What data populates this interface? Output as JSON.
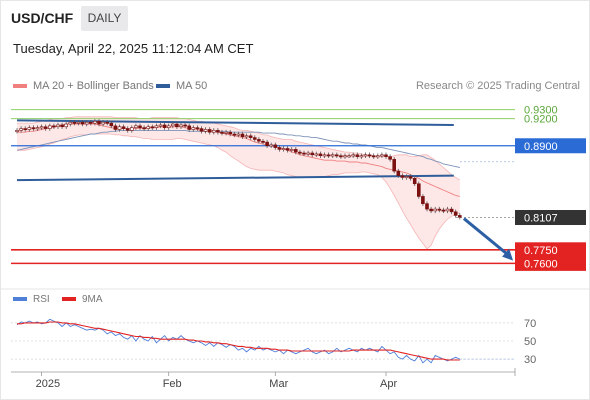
{
  "header": {
    "symbol": "USD/CHF",
    "timeframe": "DAILY"
  },
  "timestamp": "Tuesday, April 22, 2025 11:12:04 AM CET",
  "legend": {
    "ma20": "MA 20 + Bollinger Bands",
    "ma50": "MA 50",
    "copyright": "Research © 2025 Trading Central"
  },
  "colors": {
    "ma20": "#f08080",
    "band_fill": "#fde3e3",
    "ma50": "#2f5d9a",
    "candle": "#7a1010",
    "support": "#e32222",
    "resistance": "#8fcf6a",
    "pivot": "#2a6bd6",
    "current": "#333333",
    "arrow": "#2d5fa5",
    "rsi": "#4f80d8",
    "rsi_ma": "#e32222"
  },
  "chart_data": [
    {
      "type": "candlestick",
      "title": "USD/CHF",
      "timeframe": "DAILY",
      "x_ticks": [
        "2025",
        "Feb",
        "Mar",
        "Apr"
      ],
      "ylim": [
        0.735,
        0.945
      ],
      "levels": [
        {
          "label": "0.9300",
          "value": 0.93,
          "kind": "resistance"
        },
        {
          "label": "0.9200",
          "value": 0.92,
          "kind": "resistance"
        },
        {
          "label": "0.8900",
          "value": 0.89,
          "kind": "pivot"
        },
        {
          "label": "0.8107",
          "value": 0.8107,
          "kind": "current"
        },
        {
          "label": "0.7750",
          "value": 0.775,
          "kind": "support"
        },
        {
          "label": "0.7600",
          "value": 0.76,
          "kind": "support"
        }
      ],
      "trendlines": [
        {
          "from": [
            0,
            0.918
          ],
          "to": [
            108,
            0.913
          ]
        },
        {
          "from": [
            0,
            0.852
          ],
          "to": [
            108,
            0.857
          ]
        }
      ],
      "forecast_arrow": {
        "from": [
          109,
          0.8095
        ],
        "to": [
          121,
          0.763
        ]
      },
      "ma20": [
        0.905,
        0.905,
        0.905,
        0.906,
        0.906,
        0.907,
        0.908,
        0.909,
        0.91,
        0.911,
        0.912,
        0.913,
        0.914,
        0.914,
        0.914,
        0.914,
        0.914,
        0.914,
        0.914,
        0.914,
        0.913,
        0.912,
        0.911,
        0.91,
        0.909,
        0.909,
        0.909,
        0.909,
        0.909,
        0.909,
        0.909,
        0.91,
        0.91,
        0.91,
        0.91,
        0.911,
        0.911,
        0.911,
        0.911,
        0.911,
        0.911,
        0.91,
        0.909,
        0.909,
        0.908,
        0.907,
        0.907,
        0.906,
        0.906,
        0.905,
        0.904,
        0.903,
        0.902,
        0.901,
        0.9,
        0.899,
        0.898,
        0.896,
        0.894,
        0.893,
        0.892,
        0.891,
        0.89,
        0.889,
        0.888,
        0.887,
        0.885,
        0.883,
        0.882,
        0.88,
        0.879,
        0.878,
        0.877,
        0.876,
        0.875,
        0.874,
        0.874,
        0.874,
        0.873,
        0.873,
        0.873,
        0.872,
        0.872,
        0.872,
        0.871,
        0.871,
        0.87,
        0.869,
        0.868,
        0.867,
        0.865,
        0.864,
        0.863,
        0.862,
        0.861,
        0.86,
        0.858,
        0.856,
        0.854,
        0.851,
        0.849,
        0.847,
        0.845,
        0.843,
        0.841,
        0.839,
        0.837,
        0.835,
        0.834
      ],
      "upper_band": [
        0.915,
        0.915,
        0.915,
        0.915,
        0.915,
        0.916,
        0.917,
        0.918,
        0.919,
        0.92,
        0.92,
        0.92,
        0.921,
        0.921,
        0.922,
        0.922,
        0.922,
        0.922,
        0.922,
        0.922,
        0.922,
        0.922,
        0.922,
        0.922,
        0.921,
        0.921,
        0.921,
        0.921,
        0.921,
        0.921,
        0.92,
        0.92,
        0.92,
        0.921,
        0.921,
        0.921,
        0.921,
        0.921,
        0.921,
        0.921,
        0.92,
        0.92,
        0.919,
        0.918,
        0.917,
        0.917,
        0.916,
        0.915,
        0.915,
        0.914,
        0.913,
        0.912,
        0.911,
        0.91,
        0.908,
        0.907,
        0.907,
        0.906,
        0.905,
        0.904,
        0.902,
        0.902,
        0.9,
        0.899,
        0.898,
        0.897,
        0.897,
        0.897,
        0.895,
        0.894,
        0.893,
        0.892,
        0.891,
        0.89,
        0.889,
        0.888,
        0.887,
        0.886,
        0.885,
        0.884,
        0.883,
        0.883,
        0.882,
        0.882,
        0.881,
        0.88,
        0.879,
        0.879,
        0.878,
        0.878,
        0.878,
        0.878,
        0.879,
        0.88,
        0.88,
        0.88,
        0.878,
        0.878,
        0.879,
        0.88,
        0.88,
        0.877,
        0.874,
        0.87,
        0.866,
        0.862,
        0.858,
        0.855,
        0.852
      ],
      "lower_band": [
        0.885,
        0.885,
        0.885,
        0.886,
        0.887,
        0.888,
        0.889,
        0.89,
        0.892,
        0.893,
        0.895,
        0.897,
        0.898,
        0.9,
        0.901,
        0.902,
        0.902,
        0.902,
        0.903,
        0.903,
        0.903,
        0.903,
        0.903,
        0.903,
        0.902,
        0.902,
        0.901,
        0.901,
        0.9,
        0.9,
        0.899,
        0.898,
        0.898,
        0.897,
        0.897,
        0.897,
        0.897,
        0.897,
        0.897,
        0.898,
        0.898,
        0.897,
        0.896,
        0.895,
        0.894,
        0.893,
        0.892,
        0.891,
        0.89,
        0.888,
        0.885,
        0.883,
        0.879,
        0.876,
        0.873,
        0.87,
        0.867,
        0.865,
        0.864,
        0.863,
        0.863,
        0.863,
        0.863,
        0.862,
        0.861,
        0.86,
        0.858,
        0.857,
        0.856,
        0.855,
        0.855,
        0.855,
        0.855,
        0.855,
        0.856,
        0.856,
        0.857,
        0.858,
        0.858,
        0.859,
        0.86,
        0.86,
        0.86,
        0.86,
        0.861,
        0.861,
        0.86,
        0.859,
        0.858,
        0.855,
        0.85,
        0.843,
        0.835,
        0.827,
        0.818,
        0.81,
        0.803,
        0.795,
        0.788,
        0.782,
        0.776,
        0.78,
        0.79,
        0.798,
        0.804,
        0.809,
        0.812,
        0.814,
        0.816
      ],
      "ma50": [
        0.885,
        0.886,
        0.887,
        0.888,
        0.889,
        0.89,
        0.891,
        0.892,
        0.893,
        0.894,
        0.895,
        0.896,
        0.897,
        0.898,
        0.899,
        0.9,
        0.901,
        0.902,
        0.903,
        0.903,
        0.904,
        0.905,
        0.905,
        0.906,
        0.906,
        0.907,
        0.907,
        0.907,
        0.907,
        0.907,
        0.907,
        0.907,
        0.907,
        0.907,
        0.907,
        0.907,
        0.907,
        0.907,
        0.907,
        0.907,
        0.907,
        0.907,
        0.906,
        0.906,
        0.906,
        0.906,
        0.906,
        0.906,
        0.906,
        0.906,
        0.906,
        0.906,
        0.905,
        0.905,
        0.905,
        0.905,
        0.905,
        0.905,
        0.905,
        0.905,
        0.904,
        0.904,
        0.904,
        0.904,
        0.903,
        0.903,
        0.902,
        0.902,
        0.901,
        0.901,
        0.9,
        0.9,
        0.899,
        0.899,
        0.898,
        0.897,
        0.896,
        0.895,
        0.895,
        0.894,
        0.893,
        0.893,
        0.892,
        0.892,
        0.891,
        0.891,
        0.89,
        0.889,
        0.888,
        0.888,
        0.887,
        0.886,
        0.885,
        0.884,
        0.883,
        0.882,
        0.881,
        0.88,
        0.879,
        0.878,
        0.876,
        0.875,
        0.873,
        0.872,
        0.87,
        0.869,
        0.868,
        0.867,
        0.866
      ],
      "closes": [
        0.907,
        0.909,
        0.908,
        0.91,
        0.909,
        0.91,
        0.911,
        0.909,
        0.912,
        0.911,
        0.913,
        0.911,
        0.914,
        0.916,
        0.915,
        0.916,
        0.914,
        0.916,
        0.915,
        0.917,
        0.914,
        0.916,
        0.915,
        0.912,
        0.908,
        0.911,
        0.909,
        0.907,
        0.91,
        0.912,
        0.91,
        0.909,
        0.911,
        0.91,
        0.912,
        0.913,
        0.91,
        0.912,
        0.914,
        0.911,
        0.913,
        0.912,
        0.908,
        0.91,
        0.909,
        0.906,
        0.908,
        0.905,
        0.907,
        0.905,
        0.904,
        0.905,
        0.903,
        0.902,
        0.903,
        0.9,
        0.901,
        0.899,
        0.897,
        0.895,
        0.894,
        0.89,
        0.891,
        0.888,
        0.886,
        0.887,
        0.885,
        0.886,
        0.883,
        0.882,
        0.881,
        0.882,
        0.88,
        0.881,
        0.879,
        0.88,
        0.879,
        0.88,
        0.879,
        0.878,
        0.879,
        0.879,
        0.88,
        0.878,
        0.879,
        0.88,
        0.879,
        0.878,
        0.879,
        0.88,
        0.878,
        0.875,
        0.862,
        0.857,
        0.855,
        0.856,
        0.854,
        0.848,
        0.834,
        0.826,
        0.82,
        0.818,
        0.82,
        0.819,
        0.818,
        0.82,
        0.817,
        0.813,
        0.811
      ]
    },
    {
      "type": "line",
      "legend": [
        "RSI",
        "9MA"
      ],
      "yticks": [
        70,
        50,
        30
      ],
      "ylim": [
        18,
        82
      ],
      "x_ticks": [
        "2025",
        "Feb",
        "Mar",
        "Apr"
      ],
      "series": [
        {
          "name": "RSI",
          "values": [
            68,
            71,
            70,
            72,
            70,
            71,
            69,
            70,
            74,
            72,
            70,
            66,
            70,
            66,
            68,
            66,
            64,
            62,
            63,
            62,
            64,
            62,
            58,
            60,
            56,
            58,
            54,
            52,
            56,
            50,
            56,
            52,
            50,
            55,
            48,
            52,
            56,
            50,
            54,
            52,
            56,
            52,
            50,
            48,
            50,
            48,
            45,
            48,
            44,
            48,
            46,
            43,
            46,
            44,
            40,
            42,
            38,
            42,
            40,
            44,
            40,
            42,
            40,
            38,
            40,
            36,
            40,
            38,
            36,
            38,
            40,
            42,
            38,
            36,
            38,
            40,
            36,
            38,
            42,
            38,
            40,
            42,
            40,
            38,
            42,
            40,
            42,
            40,
            38,
            44,
            40,
            36,
            38,
            32,
            30,
            34,
            30,
            28,
            34,
            26,
            30,
            26,
            34,
            32,
            30,
            28,
            30,
            32,
            30
          ]
        },
        {
          "name": "9MA",
          "values": [
            69,
            69,
            70,
            70,
            70,
            70,
            70,
            70,
            71,
            71,
            71,
            70,
            70,
            69,
            69,
            68,
            67,
            66,
            65,
            64,
            64,
            63,
            62,
            61,
            60,
            59,
            58,
            57,
            56,
            55,
            55,
            54,
            54,
            53,
            53,
            52,
            52,
            52,
            52,
            52,
            52,
            52,
            51,
            51,
            50,
            50,
            49,
            49,
            48,
            48,
            47,
            47,
            46,
            45,
            44,
            44,
            43,
            43,
            42,
            42,
            42,
            42,
            41,
            41,
            40,
            40,
            40,
            39,
            39,
            39,
            39,
            39,
            39,
            39,
            39,
            39,
            39,
            39,
            39,
            39,
            39,
            39,
            40,
            40,
            40,
            40,
            40,
            40,
            40,
            40,
            40,
            40,
            39,
            38,
            37,
            36,
            35,
            34,
            33,
            32,
            31,
            30,
            30,
            30,
            30,
            29,
            29,
            29,
            29
          ]
        }
      ]
    }
  ]
}
